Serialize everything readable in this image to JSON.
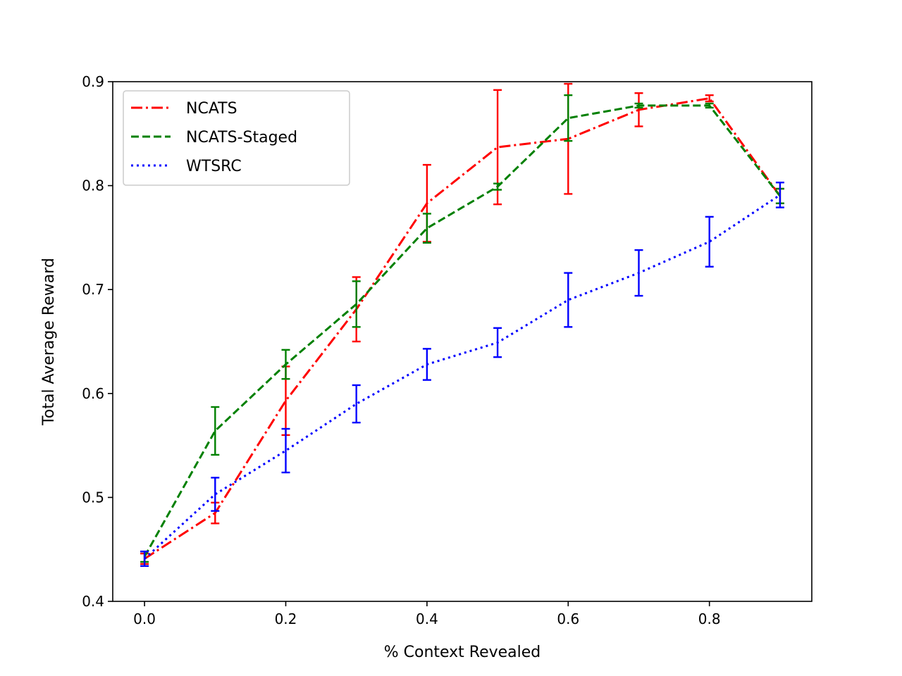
{
  "chart_data": {
    "type": "line",
    "title": "",
    "xlabel": "% Context Revealed",
    "ylabel": "Total Average Reward",
    "xlim": [
      -0.045,
      0.945
    ],
    "ylim": [
      0.4,
      0.9
    ],
    "xticks": [
      0.0,
      0.2,
      0.4,
      0.6,
      0.8
    ],
    "xtick_labels": [
      "0.0",
      "0.2",
      "0.4",
      "0.6",
      "0.8"
    ],
    "yticks": [
      0.4,
      0.5,
      0.6,
      0.7,
      0.8,
      0.9
    ],
    "ytick_labels": [
      "0.4",
      "0.5",
      "0.6",
      "0.7",
      "0.8",
      "0.9"
    ],
    "grid": false,
    "legend_position": "top-left",
    "x": [
      0.0,
      0.1,
      0.2,
      0.3,
      0.4,
      0.5,
      0.6,
      0.7,
      0.8,
      0.9
    ],
    "series": [
      {
        "name": "NCATS",
        "color": "#ff0000",
        "dash": "dashdot",
        "values": [
          0.441,
          0.485,
          0.593,
          0.681,
          0.783,
          0.837,
          0.845,
          0.873,
          0.884,
          0.79
        ],
        "errors": [
          0.005,
          0.01,
          0.033,
          0.031,
          0.037,
          0.055,
          0.053,
          0.016,
          0.003,
          0.007
        ]
      },
      {
        "name": "NCATS-Staged",
        "color": "#008000",
        "dash": "dashed",
        "values": [
          0.443,
          0.564,
          0.628,
          0.686,
          0.759,
          0.799,
          0.865,
          0.877,
          0.877,
          0.79
        ],
        "errors": [
          0.005,
          0.023,
          0.014,
          0.022,
          0.014,
          0.003,
          0.022,
          0.002,
          0.002,
          0.007
        ]
      },
      {
        "name": "WTSRC",
        "color": "#0000ff",
        "dash": "dotted",
        "values": [
          0.441,
          0.503,
          0.545,
          0.59,
          0.628,
          0.649,
          0.69,
          0.716,
          0.746,
          0.791
        ],
        "errors": [
          0.007,
          0.016,
          0.021,
          0.018,
          0.015,
          0.014,
          0.026,
          0.022,
          0.024,
          0.012
        ]
      }
    ]
  }
}
